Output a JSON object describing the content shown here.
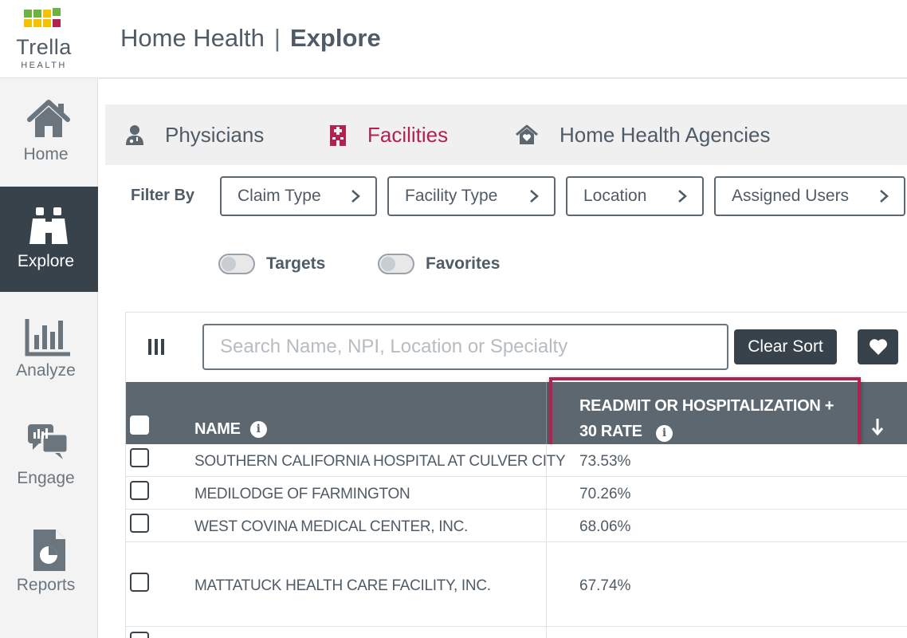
{
  "brand": {
    "name": "Trella",
    "sub": "HEALTH",
    "colors": [
      "#6db33f",
      "#f4c300",
      "#b3214e"
    ]
  },
  "sidebar": {
    "items": [
      {
        "label": "Home",
        "icon": "home-icon",
        "active": false
      },
      {
        "label": "Explore",
        "icon": "binoculars-icon",
        "active": true
      },
      {
        "label": "Analyze",
        "icon": "bar-chart-icon",
        "active": false
      },
      {
        "label": "Engage",
        "icon": "chat-icon",
        "active": false
      },
      {
        "label": "Reports",
        "icon": "report-icon",
        "active": false
      }
    ]
  },
  "header": {
    "section": "Home Health",
    "separator": "|",
    "page": "Explore"
  },
  "tabs": [
    {
      "label": "Physicians",
      "icon": "physician-icon",
      "active": false
    },
    {
      "label": "Facilities",
      "icon": "hospital-icon",
      "active": true
    },
    {
      "label": "Home Health Agencies",
      "icon": "home-heart-icon",
      "active": false
    }
  ],
  "filters": {
    "label": "Filter By",
    "buttons": [
      "Claim Type",
      "Facility Type",
      "Location",
      "Assigned Users"
    ],
    "toggles": [
      {
        "label": "Targets",
        "on": false
      },
      {
        "label": "Favorites",
        "on": false
      }
    ]
  },
  "table": {
    "search_placeholder": "Search Name, NPI, Location or Specialty",
    "clear_sort": "Clear Sort",
    "info_glyph": "i",
    "columns": {
      "name": "NAME",
      "rate": "READMIT OR HOSPITALIZATION + 30 RATE"
    },
    "rows": [
      {
        "name": "SOUTHERN CALIFORNIA HOSPITAL AT CULVER CITY",
        "rate": "73.53%"
      },
      {
        "name": "MEDILODGE OF FARMINGTON",
        "rate": "70.26%"
      },
      {
        "name": "WEST COVINA MEDICAL CENTER, INC.",
        "rate": "68.06%"
      },
      {
        "name": "MATTATUCK HEALTH CARE FACILITY, INC.",
        "rate": "67.74%"
      }
    ]
  },
  "colors": {
    "sidebar_active": "#37424b",
    "accent": "#b3214e",
    "header_bg": "#5c6770"
  }
}
